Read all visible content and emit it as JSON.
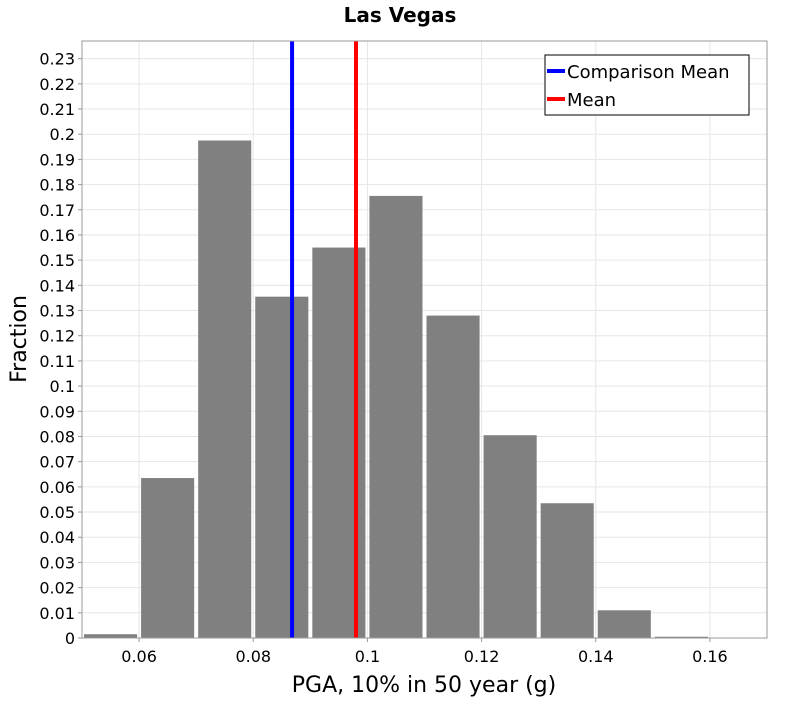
{
  "chart_data": {
    "type": "bar",
    "title": "Las Vegas",
    "xlabel": "PGA, 10% in 50 year (g)",
    "ylabel": "Fraction",
    "xlim": [
      0.05,
      0.17
    ],
    "ylim": [
      0,
      0.237
    ],
    "grid": true,
    "legend_position": "top-right",
    "bar_color": "#808080",
    "x_ticks": [
      "0.06",
      "0.08",
      "0.1",
      "0.12",
      "0.14",
      "0.16"
    ],
    "y_ticks": [
      "0",
      "0.01",
      "0.02",
      "0.03",
      "0.04",
      "0.05",
      "0.06",
      "0.07",
      "0.08",
      "0.09",
      "0.1",
      "0.11",
      "0.12",
      "0.13",
      "0.14",
      "0.15",
      "0.16",
      "0.17",
      "0.18",
      "0.19",
      "0.2",
      "0.21",
      "0.22",
      "0.23"
    ],
    "bin_width": 0.01,
    "bins": [
      {
        "x": 0.05,
        "value": 0.0015
      },
      {
        "x": 0.06,
        "value": 0.0635
      },
      {
        "x": 0.07,
        "value": 0.1975
      },
      {
        "x": 0.08,
        "value": 0.1355
      },
      {
        "x": 0.09,
        "value": 0.155
      },
      {
        "x": 0.1,
        "value": 0.1755
      },
      {
        "x": 0.11,
        "value": 0.128
      },
      {
        "x": 0.12,
        "value": 0.0805
      },
      {
        "x": 0.13,
        "value": 0.0535
      },
      {
        "x": 0.14,
        "value": 0.011
      },
      {
        "x": 0.15,
        "value": 0.0005
      },
      {
        "x": 0.16,
        "value": 0
      }
    ],
    "reference_lines": [
      {
        "name": "Comparison Mean",
        "x": 0.0868,
        "color": "#0000ff"
      },
      {
        "name": "Mean",
        "x": 0.098,
        "color": "#ff0000"
      }
    ]
  }
}
